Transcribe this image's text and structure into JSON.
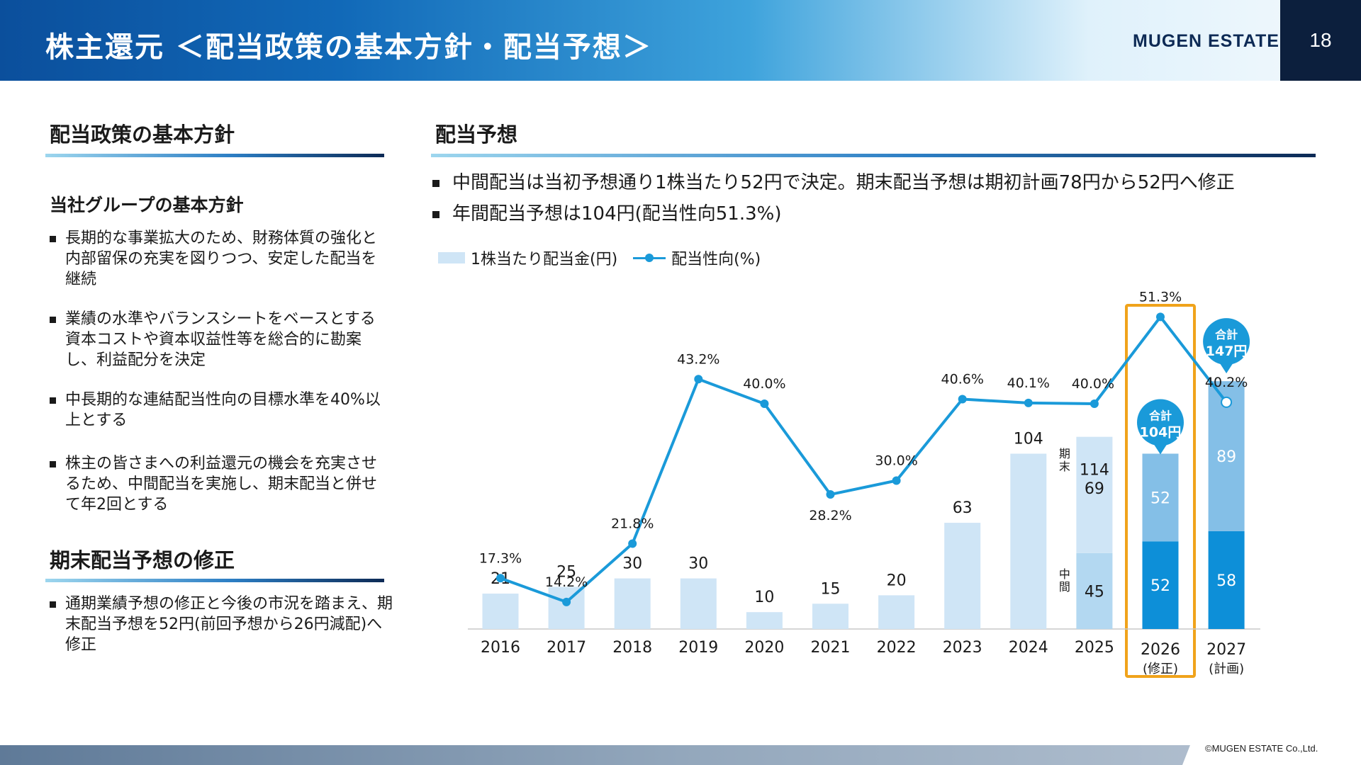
{
  "header": {
    "title": "株主還元 ＜配当政策の基本方針・配当予想＞",
    "brand": "MUGEN ESTATE",
    "page_number": "18"
  },
  "left": {
    "policy_heading": "配当政策の基本方針",
    "group_heading": "当社グループの基本方針",
    "policy_items": [
      "長期的な事業拡大のため、財務体質の強化と内部留保の充実を図りつつ、安定した配当を継続",
      "業績の水準やバランスシートをベースとする資本コストや資本収益性等を総合的に勘案し、利益配分を決定",
      "中長期的な連結配当性向の目標水準を40%以上とする",
      "株主の皆さまへの利益還元の機会を充実させるため、中間配当を実施し、期末配当と併せて年2回とする"
    ],
    "revision_heading": "期末配当予想の修正",
    "revision_items": [
      "通期業績予想の修正と今後の市況を踏まえ、期末配当予想を52円(前回予想から26円減配)へ修正"
    ]
  },
  "right": {
    "heading": "配当予想",
    "bullets": [
      "中間配当は当初予想通り1株当たり52円で決定。期末配当予想は期初計画78円から52円へ修正",
      "年間配当予想は104円(配当性向51.3%)"
    ],
    "legend_bar": "1株当たり配当金(円)",
    "legend_line": "配当性向(%)"
  },
  "chart_data": {
    "type": "bar",
    "categories": [
      "2016",
      "2017",
      "2018",
      "2019",
      "2020",
      "2021",
      "2022",
      "2023",
      "2024",
      "2025",
      "2026",
      "2027"
    ],
    "category_notes": [
      "",
      "",
      "",
      "",
      "",
      "",
      "",
      "",
      "",
      "",
      "(修正)",
      "(計画)"
    ],
    "series": [
      {
        "name": "1株当たり配当金(円)",
        "values": [
          21,
          25,
          30,
          30,
          10,
          15,
          20,
          63,
          104,
          114,
          104,
          147
        ]
      },
      {
        "name": "配当性向(%)",
        "values": [
          17.3,
          14.2,
          21.8,
          43.2,
          40.0,
          28.2,
          30.0,
          40.6,
          40.1,
          40.0,
          51.3,
          40.2
        ]
      }
    ],
    "breakdown": [
      {
        "year": "2025",
        "interim": 45,
        "year_end": 69,
        "interim_label": "中間",
        "year_end_label": "期末"
      },
      {
        "year": "2026",
        "interim": 52,
        "year_end": 52
      },
      {
        "year": "2027",
        "interim": 58,
        "year_end": 89
      }
    ],
    "callouts": [
      {
        "year": "2026",
        "line1": "合計",
        "line2": "104円"
      },
      {
        "year": "2027",
        "line1": "合計",
        "line2": "147円"
      }
    ],
    "highlight": "2026",
    "grid": false,
    "legend_position": "top-left"
  },
  "colors": {
    "bar_light": "#cfe5f6",
    "bar_interim_2025": "#b3d8f1",
    "bar_interim": "#0d8fd8",
    "bar_year_end": "#84bfe7",
    "line": "#1a9ad9",
    "highlight_border": "#f0a31b",
    "callout": "#1a9ad9"
  },
  "footer": {
    "copyright": "©MUGEN ESTATE Co.,Ltd."
  }
}
